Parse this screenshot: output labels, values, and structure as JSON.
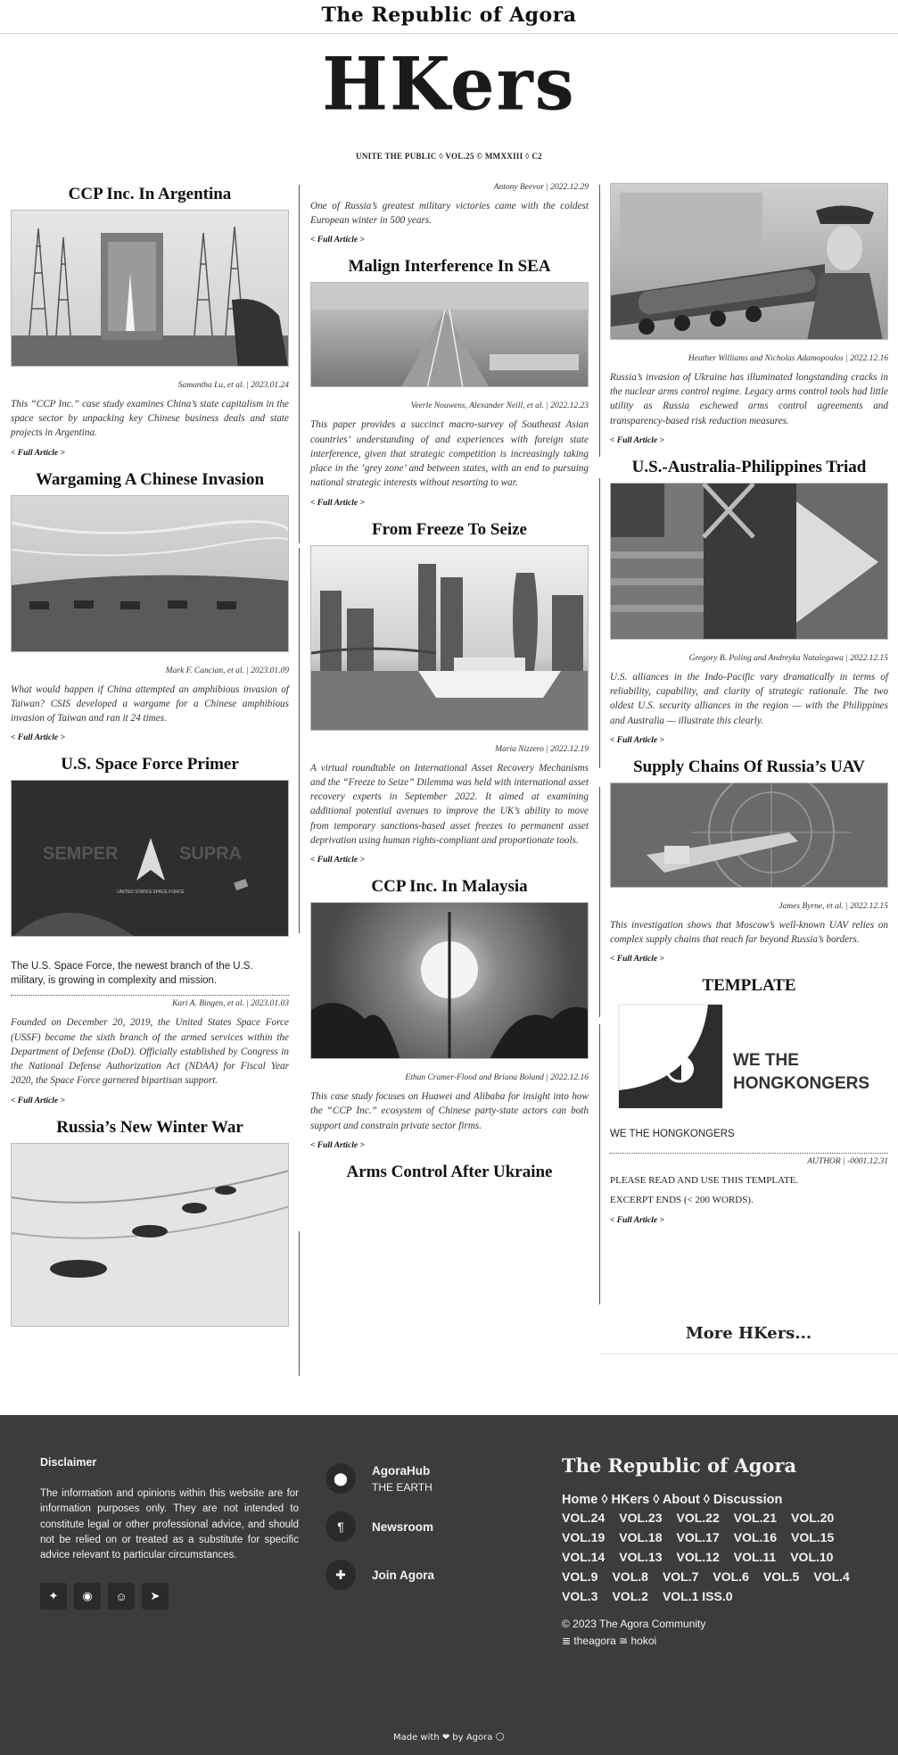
{
  "site": {
    "brand": "The Republic of Agora",
    "logo": "HKers",
    "tagline": "UNITE THE PUBLIC ◊ VOL.25 © MMXXIII ◊ C2",
    "more": "More HKers...",
    "full_article": "< Full Article >"
  },
  "articles": {
    "argentina": {
      "title": "CCP Inc. In Argentina",
      "byline": "Samantha Lu, et al. | 2023.01.24",
      "excerpt": "This “CCP Inc.” case study examines China’s state capitalism in the space sector by unpacking key Chinese business deals and state projects in Argentina."
    },
    "wargaming": {
      "title": "Wargaming A Chinese Invasion",
      "byline": "Mark F. Cancian, et al. | 2023.01.09",
      "excerpt": "What would happen if China attempted an amphibious invasion of Taiwan? CSIS developed a wargame for a Chinese amphibious invasion of Taiwan and ran it 24 times."
    },
    "spaceforce": {
      "title": "U.S. Space Force Primer",
      "pic_left": "SEMPER",
      "pic_right": "SUPRA",
      "pic_caption": "UNITED STATES SPACE FORCE",
      "lead": "The U.S. Space Force, the newest branch of the U.S. military, is growing in complexity and mission.",
      "byline": "Kari A. Bingen, et al. | 2023.01.03",
      "excerpt": "Founded on December 20, 2019, the United States Space Force (USSF) became the sixth branch of the armed services within the Department of Defense (DoD). Officially established by Congress in the National Defense Authorization Act (NDAA) for Fiscal Year 2020, the Space Force garnered bipartisan support."
    },
    "winterwar": {
      "title": "Russia’s New Winter War",
      "byline": "Antony Beevor | 2022.12.29",
      "excerpt": "One of Russia’s greatest military victories came with the coldest European winter in 500 years."
    },
    "sea": {
      "title": "Malign Interference In SEA",
      "byline": "Veerle Nouwens, Alexander Neill, et al. | 2022.12.23",
      "excerpt": "This paper provides a succinct macro-survey of Southeast Asian countries’ understanding of and experiences with foreign state interference, given that strategic competition is increasingly taking place in the ‘grey zone’ and between states, with an end to pursuing national strategic interests without resorting to war."
    },
    "freeze": {
      "title": "From Freeze To Seize",
      "byline": "Maria Nizzero | 2022.12.19",
      "excerpt": "A virtual roundtable on International Asset Recovery Mechanisms and the “Freeze to Seize” Dilemma was held with international asset recovery experts in September 2022. It aimed at examining additional potential avenues to improve the UK’s ability to move from temporary sanctions-based asset freezes to permanent asset deprivation using human rights-compliant and proportionate tools."
    },
    "malaysia": {
      "title": "CCP Inc. In Malaysia",
      "byline": "Ethan Cramer-Flood and Briana Boland | 2022.12.16",
      "excerpt": "This case study focuses on Huawei and Alibaba for insight into how the “CCP Inc.” ecosystem of Chinese party-state actors can both support and constrain private sector firms."
    },
    "armscontrol": {
      "title": "Arms Control After Ukraine",
      "byline": "Heather Williams and Nicholas Adamopoulos | 2022.12.16",
      "excerpt": "Russia’s invasion of Ukraine has illuminated longstanding cracks in the nuclear arms control regime. Legacy arms control tools had little utility as Russia eschewed arms control agreements and transparency-based risk reduction measures."
    },
    "triad": {
      "title": "U.S.-Australia-Philippines Triad",
      "byline": "Gregory B. Poling and Andreyka Natalegawa | 2022.12.15",
      "excerpt": "U.S. alliances in the Indo-Pacific vary dramatically in terms of reliability, capability, and clarity of strategic rationale. The two oldest U.S. security alliances in the region — with the Philippines and Australia — illustrate this clearly."
    },
    "uav": {
      "title": "Supply Chains Of Russia’s UAV",
      "byline": "James Byrne, et al. | 2022.12.15",
      "excerpt": "This investigation shows that Moscow’s well-known UAV relies on complex supply chains that reach far beyond Russia’s borders."
    },
    "template": {
      "title": "TEMPLATE",
      "logo_line1": "WE THE",
      "logo_line2": "HONGKONGERS",
      "lead": "WE THE HONGKONGERS",
      "byline": "AUTHOR | -0001.12.31",
      "text1": "PLEASE READ AND USE THIS TEMPLATE.",
      "text2": "EXCERPT ENDS (< 200 WORDS)."
    }
  },
  "footer": {
    "disclaimer_title": "Disclaimer",
    "disclaimer_text": "The information and opinions within this website are for information purposes only. They are not intended to constitute legal or other professional advice, and should not be relied on or treated as a substitute for specific advice relevant to particular circumstances.",
    "social_icons": [
      "twitter-icon",
      "github-icon",
      "reddit-icon",
      "telegram-icon"
    ],
    "hub_title": "AgoraHub",
    "hub_sub": "THE EARTH",
    "newsroom": "Newsroom",
    "join": "Join Agora",
    "brand": "The Republic of Agora",
    "nav": "Home ◊ HKers ◊ About ◊ Discussion",
    "volumes": [
      "VOL.24",
      "VOL.23",
      "VOL.22",
      "VOL.21",
      "VOL.20",
      "VOL.19",
      "VOL.18",
      "VOL.17",
      "VOL.16",
      "VOL.15",
      "VOL.14",
      "VOL.13",
      "VOL.12",
      "VOL.11",
      "VOL.10",
      "VOL.9",
      "VOL.8",
      "VOL.7",
      "VOL.6",
      "VOL.5",
      "VOL.4",
      "VOL.3",
      "VOL.2",
      "VOL.1 ISS.0"
    ],
    "copyright": "© 2023 The Agora Community",
    "links": "≣ theagora ≅ hokoi",
    "made_with": "Made with ❤ by Agora 🌕"
  },
  "colors": {
    "footer_bg": "#3c3c3c",
    "text": "#222222",
    "rule": "#555555"
  }
}
